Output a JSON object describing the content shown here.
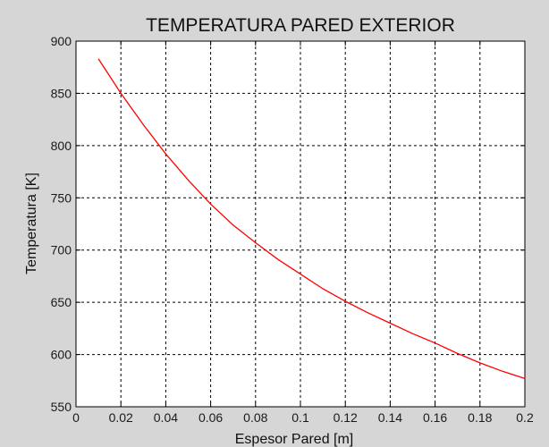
{
  "chart_data": {
    "type": "line",
    "title": "TEMPERATURA PARED EXTERIOR",
    "xlabel": "Espesor Pared [m]",
    "ylabel": "Temperatura [K]",
    "xlim": [
      0,
      0.2
    ],
    "ylim": [
      550,
      900
    ],
    "xticks": [
      0,
      0.02,
      0.04,
      0.06,
      0.08,
      0.1,
      0.12,
      0.14,
      0.16,
      0.18,
      0.2
    ],
    "xtick_labels": [
      "0",
      "0.02",
      "0.04",
      "0.06",
      "0.08",
      "0.1",
      "0.12",
      "0.14",
      "0.16",
      "0.18",
      "0.2"
    ],
    "yticks": [
      550,
      600,
      650,
      700,
      750,
      800,
      850,
      900
    ],
    "ytick_labels": [
      "550",
      "600",
      "650",
      "700",
      "750",
      "800",
      "850",
      "900"
    ],
    "grid": true,
    "series": [
      {
        "color": "#ff0000",
        "x": [
          0.01,
          0.02,
          0.03,
          0.04,
          0.05,
          0.06,
          0.07,
          0.08,
          0.09,
          0.1,
          0.11,
          0.12,
          0.13,
          0.14,
          0.15,
          0.16,
          0.17,
          0.18,
          0.19,
          0.2
        ],
        "y": [
          883,
          850,
          820,
          792,
          767,
          744,
          724,
          707,
          691,
          677,
          663,
          651,
          640,
          630,
          620,
          611,
          601,
          592,
          584,
          577
        ]
      }
    ]
  }
}
